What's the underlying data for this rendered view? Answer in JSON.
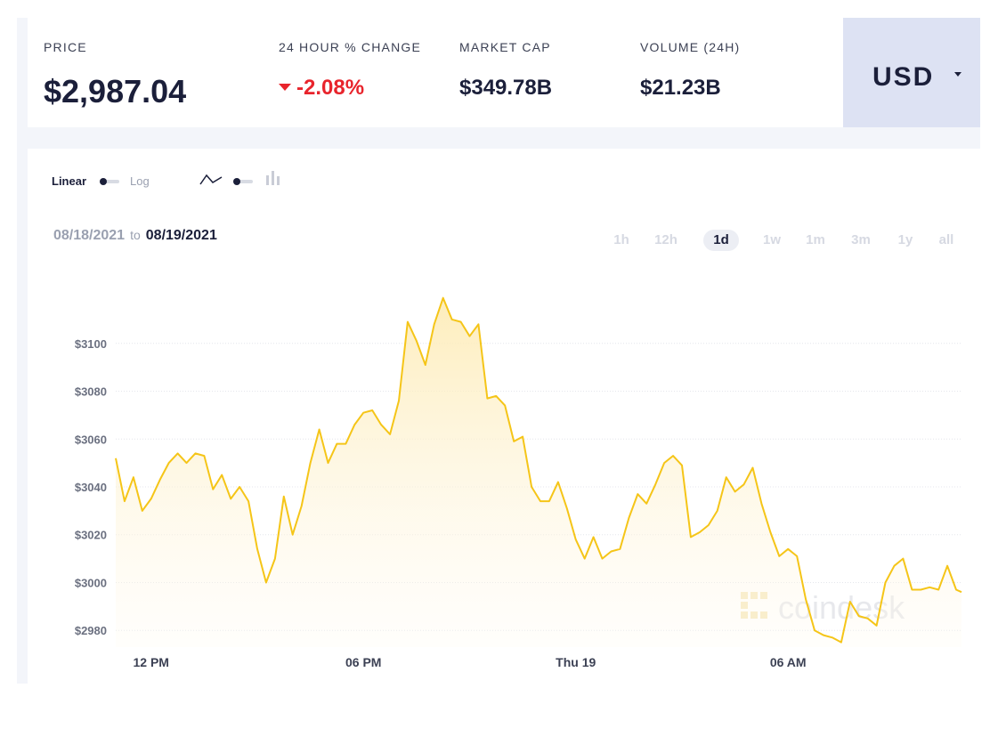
{
  "stats": [
    {
      "label": "PRICE",
      "value": "$2,987.04"
    },
    {
      "label": "24 HOUR % CHANGE",
      "value": "-2.08%",
      "direction": "down"
    },
    {
      "label": "MARKET CAP",
      "value": "$349.78B"
    },
    {
      "label": "VOLUME (24H)",
      "value": "$21.23B"
    }
  ],
  "currency": {
    "label": "USD"
  },
  "controls": {
    "scale_linear": "Linear",
    "scale_log": "Log",
    "line_icon": "line-chart-icon",
    "candle_icon": "candlestick-icon"
  },
  "date_range": {
    "from": "08/18/2021",
    "to_word": "to",
    "to": "08/19/2021"
  },
  "ranges": [
    {
      "label": "1h",
      "selected": false
    },
    {
      "label": "12h",
      "selected": false
    },
    {
      "label": "1d",
      "selected": true
    },
    {
      "label": "1w",
      "selected": false
    },
    {
      "label": "1m",
      "selected": false
    },
    {
      "label": "3m",
      "selected": false
    },
    {
      "label": "1y",
      "selected": false
    },
    {
      "label": "all",
      "selected": false
    }
  ],
  "watermark": "coindesk",
  "colors": {
    "line": "#f5c518",
    "fill": "#fff3d1",
    "negative": "#e8242c",
    "text": "#1b1f3a",
    "muted": "#9aa0b0"
  },
  "chart_data": {
    "type": "area",
    "xlabel": "",
    "ylabel": "",
    "ylim": [
      2973,
      3123
    ],
    "y_ticks": [
      2980,
      3000,
      3020,
      3040,
      3060,
      3080,
      3100
    ],
    "y_tick_labels": [
      "$2980",
      "$3000",
      "$3020",
      "$3040",
      "$3060",
      "$3080",
      "$3100"
    ],
    "x_tick_labels": [
      {
        "label": "12 PM",
        "hour": 12
      },
      {
        "label": "06 PM",
        "hour": 18
      },
      {
        "label": "Thu 19",
        "hour": 24
      },
      {
        "label": "06 AM",
        "hour": 30
      }
    ],
    "x_range_hours": [
      11.0,
      34.9
    ],
    "grid": true,
    "series": [
      {
        "x": [
          11.0,
          11.25,
          11.5,
          11.75,
          12.0,
          12.25,
          12.5,
          12.75,
          13.0,
          13.25,
          13.5,
          13.75,
          14.0,
          14.25,
          14.5,
          14.75,
          15.0,
          15.25,
          15.5,
          15.75,
          16.0,
          16.25,
          16.5,
          16.75,
          17.0,
          17.25,
          17.5,
          17.75,
          18.0,
          18.25,
          18.5,
          18.75,
          19.0,
          19.25,
          19.5,
          19.75,
          20.0,
          20.25,
          20.5,
          20.75,
          21.0,
          21.25,
          21.5,
          21.75,
          22.0,
          22.25,
          22.5,
          22.75,
          23.0,
          23.25,
          23.5,
          23.75,
          24.0,
          24.25,
          24.5,
          24.75,
          25.0,
          25.25,
          25.5,
          25.75,
          26.0,
          26.25,
          26.5,
          26.75,
          27.0,
          27.25,
          27.5,
          27.75,
          28.0,
          28.25,
          28.5,
          28.75,
          29.0,
          29.25,
          29.5,
          29.75,
          30.0,
          30.25,
          30.5,
          30.75,
          31.0,
          31.25,
          31.5,
          31.75,
          32.0,
          32.25,
          32.5,
          32.75,
          33.0,
          33.25,
          33.5,
          33.75,
          34.0,
          34.25,
          34.5,
          34.75,
          34.9
        ],
        "y": [
          3052,
          3034,
          3044,
          3030,
          3035,
          3043,
          3050,
          3054,
          3050,
          3054,
          3053,
          3039,
          3045,
          3035,
          3040,
          3034,
          3014,
          3000,
          3010,
          3036,
          3020,
          3032,
          3050,
          3064,
          3050,
          3058,
          3058,
          3066,
          3071,
          3072,
          3066,
          3062,
          3076,
          3109,
          3101,
          3091,
          3108,
          3119,
          3110,
          3109,
          3103,
          3108,
          3077,
          3078,
          3074,
          3059,
          3061,
          3040,
          3034,
          3034,
          3042,
          3031,
          3018,
          3010,
          3019,
          3010,
          3013,
          3014,
          3027,
          3037,
          3033,
          3041,
          3050,
          3053,
          3049,
          3019,
          3021,
          3024,
          3030,
          3044,
          3038,
          3041,
          3048,
          3033,
          3021,
          3011,
          3014,
          3011,
          2993,
          2980,
          2978,
          2977,
          2975,
          2992,
          2986,
          2985,
          2982,
          3000,
          3007,
          3010,
          2997,
          2997,
          2998,
          2997,
          3007,
          2997,
          2996
        ]
      }
    ]
  }
}
